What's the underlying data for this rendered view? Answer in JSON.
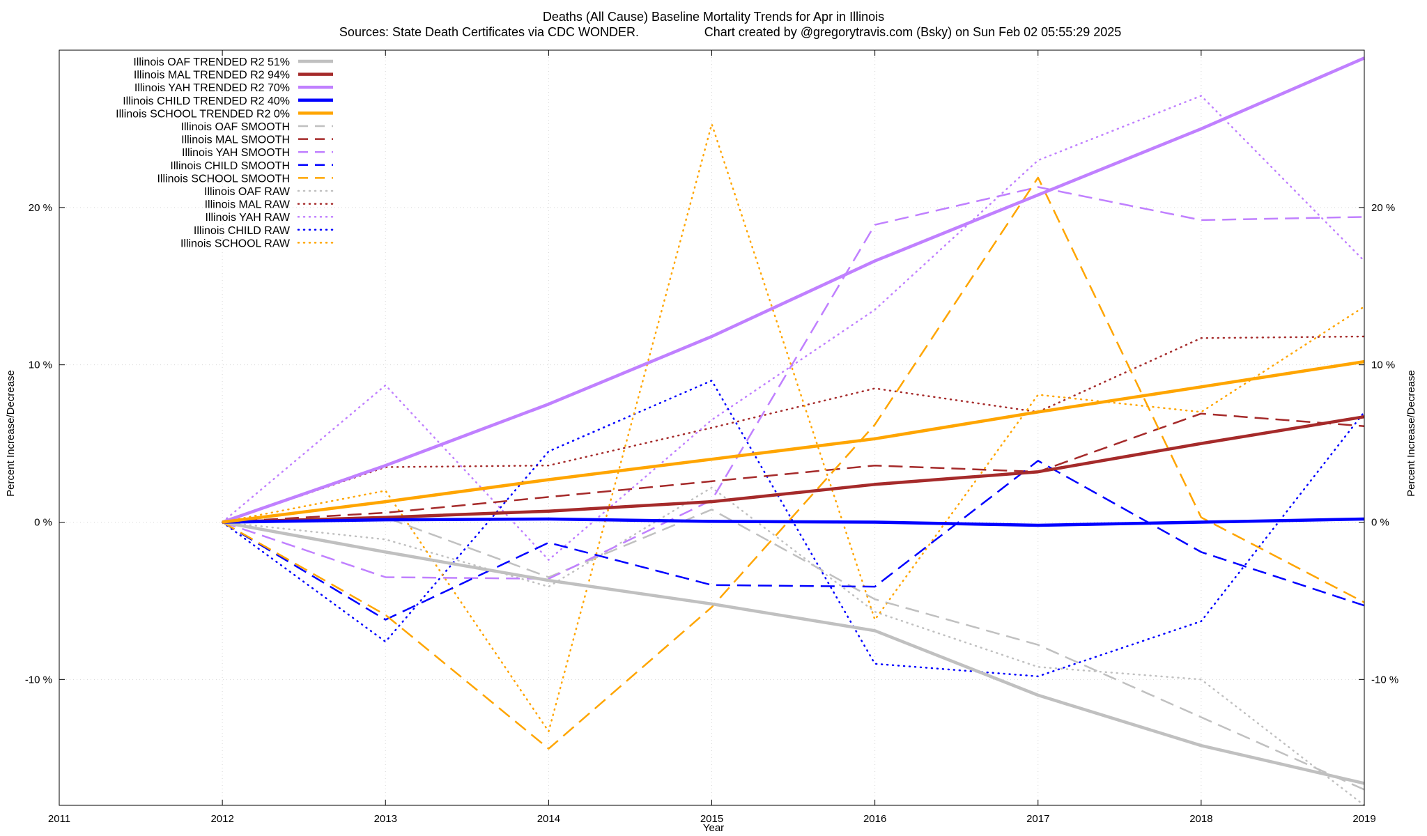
{
  "chart_data": {
    "type": "line",
    "title": "Deaths (All Cause)  Baseline Mortality Trends for Apr in Illinois",
    "subtitle_left": "Sources: State Death Certificates via CDC WONDER.",
    "subtitle_right": "Chart created by @gregorytravis.com (Bsky) on Sun Feb 02 05:55:29 2025",
    "xlabel": "Year",
    "ylabel": "Percent Increase/Decrease",
    "y2label": "Percent Increase/Decrease",
    "xlim": [
      2011,
      2019
    ],
    "ylim": [
      -18,
      30
    ],
    "x_ticks": [
      2011,
      2012,
      2013,
      2014,
      2015,
      2016,
      2017,
      2018,
      2019
    ],
    "x_tick_labels": [
      "2011",
      "2012",
      "2013",
      "2014",
      "2015",
      "2016",
      "2017",
      "2018",
      "2019"
    ],
    "y_ticks": [
      -10,
      0,
      10,
      20
    ],
    "y_tick_labels": [
      "-10 %",
      "0 %",
      "10 %",
      "20 %"
    ],
    "grid": true,
    "legend_position": "top-left",
    "x": [
      2012,
      2013,
      2014,
      2015,
      2016,
      2017,
      2018,
      2019
    ],
    "series": [
      {
        "name": "Illinois OAF TRENDED R2  51%",
        "color": "#c0c0c0",
        "style": "solid",
        "values": [
          0,
          -1.9,
          -3.7,
          -5.2,
          -6.9,
          -11.0,
          -14.2,
          -16.6
        ]
      },
      {
        "name": "Illinois MAL TRENDED R2  94%",
        "color": "#a52a2a",
        "style": "solid",
        "values": [
          0,
          0.3,
          0.7,
          1.3,
          2.4,
          3.2,
          5.0,
          6.7
        ]
      },
      {
        "name": "Illinois YAH TRENDED R2  70%",
        "color": "#c080ff",
        "style": "solid",
        "values": [
          0,
          3.6,
          7.5,
          11.8,
          16.6,
          20.8,
          25.0,
          29.5
        ]
      },
      {
        "name": "Illinois CHILD TRENDED R2  40%",
        "color": "#0000ff",
        "style": "solid",
        "values": [
          0,
          0.15,
          0.2,
          0.05,
          0.0,
          -0.2,
          0.0,
          0.2
        ]
      },
      {
        "name": "Illinois SCHOOL TRENDED R2   0%",
        "color": "#ffa500",
        "style": "solid",
        "values": [
          0,
          1.3,
          2.7,
          4.0,
          5.3,
          7.0,
          8.6,
          10.2
        ]
      },
      {
        "name": "Illinois OAF SMOOTH",
        "color": "#c0c0c0",
        "style": "dashed",
        "values": [
          0,
          0.3,
          -3.5,
          0.8,
          -4.9,
          -7.8,
          -12.4,
          -17.0
        ]
      },
      {
        "name": "Illinois MAL SMOOTH",
        "color": "#a52a2a",
        "style": "dashed",
        "values": [
          0,
          0.6,
          1.6,
          2.6,
          3.6,
          3.2,
          6.9,
          6.1
        ]
      },
      {
        "name": "Illinois YAH SMOOTH",
        "color": "#c080ff",
        "style": "dashed",
        "values": [
          0,
          -3.5,
          -3.6,
          1.4,
          18.9,
          21.3,
          19.2,
          19.4
        ]
      },
      {
        "name": "Illinois CHILD SMOOTH",
        "color": "#0000ff",
        "style": "dashed",
        "values": [
          0,
          -6.2,
          -1.3,
          -4.0,
          -4.1,
          3.9,
          -1.9,
          -5.3
        ]
      },
      {
        "name": "Illinois SCHOOL SMOOTH",
        "color": "#ffa500",
        "style": "dashed",
        "values": [
          0,
          -5.9,
          -14.4,
          -5.4,
          6.2,
          21.9,
          0.3,
          -5.1
        ]
      },
      {
        "name": "Illinois OAF RAW",
        "color": "#c0c0c0",
        "style": "dotted",
        "values": [
          0,
          -1.1,
          -4.1,
          2.2,
          -5.7,
          -9.2,
          -10.0,
          -18.0
        ]
      },
      {
        "name": "Illinois MAL RAW",
        "color": "#a52a2a",
        "style": "dotted",
        "values": [
          0,
          3.5,
          3.6,
          6.0,
          8.5,
          7.0,
          11.7,
          11.8
        ]
      },
      {
        "name": "Illinois YAH RAW",
        "color": "#c080ff",
        "style": "dotted",
        "values": [
          0,
          8.7,
          -2.4,
          6.5,
          13.5,
          23.0,
          27.1,
          16.6
        ]
      },
      {
        "name": "Illinois CHILD RAW",
        "color": "#0000ff",
        "style": "dotted",
        "values": [
          0,
          -7.6,
          4.5,
          9.0,
          -9.0,
          -9.8,
          -6.3,
          7.0
        ]
      },
      {
        "name": "Illinois SCHOOL RAW",
        "color": "#ffa500",
        "style": "dotted",
        "values": [
          0,
          2.0,
          -13.3,
          25.3,
          -6.2,
          8.1,
          7.0,
          13.7
        ]
      }
    ]
  }
}
